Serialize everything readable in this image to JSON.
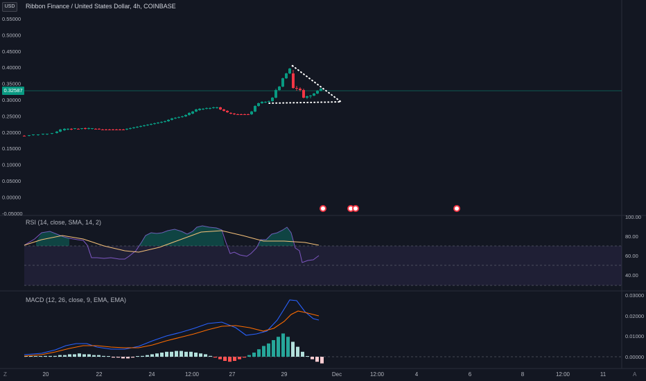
{
  "header": {
    "currency_button": "USD",
    "symbol_title": "Ribbon Finance / United States Dollar, 4h, COINBASE"
  },
  "price_pane": {
    "last_price": "0.32587",
    "y_ticks": [
      "0.55000",
      "0.50000",
      "0.45000",
      "0.40000",
      "0.35000",
      "0.30000",
      "0.25000",
      "0.20000",
      "0.15000",
      "0.10000",
      "0.05000",
      "0.00000",
      "-0.05000"
    ]
  },
  "rsi_pane": {
    "label": "RSI (14, close, SMA, 14, 2)",
    "y_ticks": [
      "100.00",
      "80.00",
      "60.00",
      "40.00"
    ]
  },
  "macd_pane": {
    "label": "MACD (12, 26, close, 9, EMA, EMA)",
    "y_ticks": [
      "0.03000",
      "0.02000",
      "0.01000",
      "0.00000"
    ]
  },
  "x_axis": {
    "labels": [
      "20",
      "22",
      "24",
      "12:00",
      "27",
      "29",
      "Dec",
      "12:00",
      "4",
      "6",
      "8",
      "12:00",
      "11"
    ]
  },
  "corner_buttons": {
    "left": "Z",
    "right": "A"
  },
  "colors": {
    "up": "#089981",
    "down": "#f23645",
    "background": "#131722",
    "rsi_fill": "#7e57c2",
    "macd": "#2962ff",
    "signal": "#ff6d00"
  }
}
